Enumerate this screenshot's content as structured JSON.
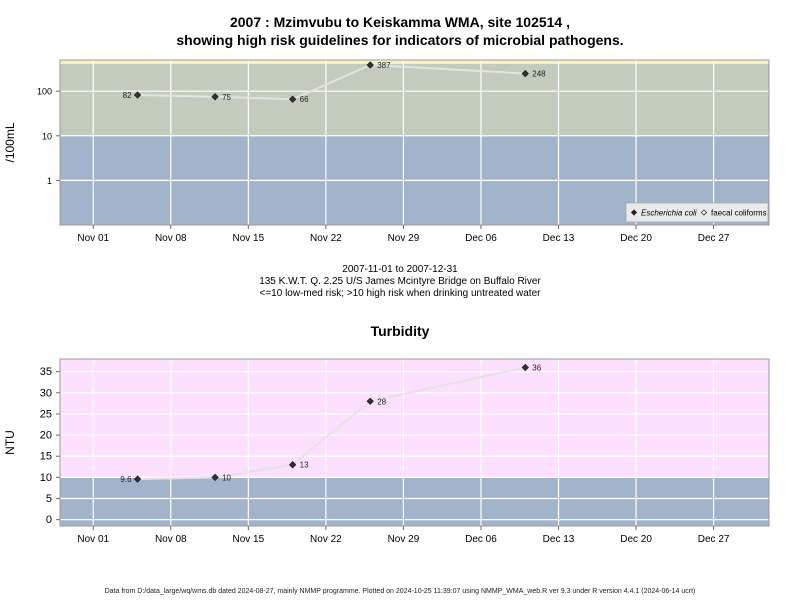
{
  "main_title_line1": "2007 : Mzimvubu to Keiskamma WMA, site 102514 ,",
  "main_title_line2": "showing high risk guidelines for indicators of microbial pathogens.",
  "caption_line1": "2007-11-01 to 2007-12-31",
  "caption_line2": "135 K.W.T. Q. 2.25 U/S James Mcintyre Bridge on Buffalo River",
  "caption_line3": "<=10 low-med risk; >10 high risk when drinking untreated water",
  "footer": "Data from D:/data_large/wq/wms.db dated 2024-08-27, mainly NMMP programme. Plotted on 2024-10-25 11:39:07 using NMMP_WMA_web.R ver 9.3 under R version 4.4.1 (2024-06-14 ucrt)",
  "colors": {
    "low_risk_band": "#a2b4cb",
    "high_risk_band_microbial": "#c3cbbc",
    "top_strip": "#f4f2c4",
    "high_risk_band_turbidity": "#fde0fd",
    "line": "#e3e3e3",
    "marker": "#333333"
  },
  "chart_data": [
    {
      "type": "line",
      "title": "",
      "xlabel": "",
      "ylabel": "/100mL",
      "y_scale": "log",
      "ylim": [
        0.1,
        500
      ],
      "yticks": [
        1,
        10,
        100
      ],
      "ytick_labels": [
        "1",
        "10",
        "100"
      ],
      "xlim": [
        "2007-10-29",
        "2008-01-01"
      ],
      "xticks": [
        "2007-11-01",
        "2007-11-08",
        "2007-11-15",
        "2007-11-22",
        "2007-11-29",
        "2007-12-06",
        "2007-12-13",
        "2007-12-20",
        "2007-12-27"
      ],
      "xtick_labels": [
        "Nov 01",
        "Nov 08",
        "Nov 15",
        "Nov 22",
        "Nov 29",
        "Dec 06",
        "Dec 13",
        "Dec 20",
        "Dec 27"
      ],
      "threshold": 10,
      "grid": true,
      "legend_position": "bottom-right",
      "legend": [
        {
          "label": "Escherichia coli",
          "marker": "filled-diamond",
          "italic": true
        },
        {
          "label": "faecal coliforms",
          "marker": "open-diamond",
          "italic": false
        }
      ],
      "series": [
        {
          "name": "Escherichia coli",
          "x": [
            "2007-11-05",
            "2007-11-12",
            "2007-11-19",
            "2007-11-26",
            "2007-12-10"
          ],
          "y": [
            82,
            75,
            66,
            387,
            248
          ],
          "labels": [
            "82",
            "75",
            "66",
            "387",
            "248"
          ]
        }
      ]
    },
    {
      "type": "line",
      "title": "Turbidity",
      "xlabel": "",
      "ylabel": "NTU",
      "y_scale": "linear",
      "ylim": [
        -1.5,
        38
      ],
      "yticks": [
        0,
        5,
        10,
        15,
        20,
        25,
        30,
        35
      ],
      "ytick_labels": [
        "0",
        "5",
        "10",
        "15",
        "20",
        "25",
        "30",
        "35"
      ],
      "xlim": [
        "2007-10-29",
        "2008-01-01"
      ],
      "xticks": [
        "2007-11-01",
        "2007-11-08",
        "2007-11-15",
        "2007-11-22",
        "2007-11-29",
        "2007-12-06",
        "2007-12-13",
        "2007-12-20",
        "2007-12-27"
      ],
      "xtick_labels": [
        "Nov 01",
        "Nov 08",
        "Nov 15",
        "Nov 22",
        "Nov 29",
        "Dec 06",
        "Dec 13",
        "Dec 20",
        "Dec 27"
      ],
      "threshold": 10,
      "grid": true,
      "series": [
        {
          "x": [
            "2007-11-05",
            "2007-11-12",
            "2007-11-19",
            "2007-11-26",
            "2007-12-10"
          ],
          "y": [
            9.6,
            10,
            13,
            28,
            36
          ],
          "labels": [
            "9.6",
            "10",
            "13",
            "28",
            "36"
          ]
        }
      ]
    }
  ]
}
